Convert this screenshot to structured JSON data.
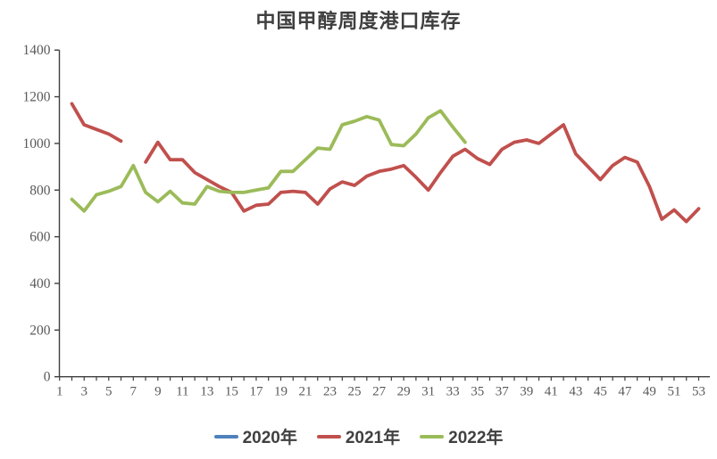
{
  "title": "中国甲醇周度港口库存",
  "chart_data": {
    "type": "line",
    "title": "中国甲醇周度港口库存",
    "x_axis": {
      "min": 1,
      "max": 53,
      "tick_labels": [
        1,
        3,
        5,
        7,
        9,
        11,
        13,
        15,
        17,
        19,
        21,
        23,
        25,
        27,
        29,
        31,
        33,
        35,
        37,
        39,
        41,
        43,
        45,
        47,
        49,
        51,
        53
      ],
      "minor_tick_step": 1
    },
    "y_axis": {
      "min": 0,
      "max": 1400,
      "tick_step": 200,
      "tick_labels": [
        0,
        200,
        400,
        600,
        800,
        1000,
        1200,
        1400
      ]
    },
    "grid": false,
    "legend_position": "bottom",
    "colors": {
      "axis": "#3f3f3f",
      "tick_label": "#595959",
      "title": "#3f3f3f",
      "legend_text": "#404040"
    },
    "series": [
      {
        "name": "2020年",
        "color": "#4F81BD",
        "weeks": [],
        "values": []
      },
      {
        "name": "2021年",
        "color": "#C0504D",
        "weeks": [
          2,
          3,
          4,
          5,
          6,
          7,
          8,
          9,
          10,
          11,
          12,
          13,
          14,
          15,
          16,
          17,
          18,
          19,
          20,
          21,
          22,
          23,
          24,
          25,
          26,
          27,
          28,
          29,
          30,
          31,
          32,
          33,
          34,
          35,
          36,
          37,
          38,
          39,
          40,
          41,
          42,
          43,
          44,
          45,
          46,
          47,
          48,
          49,
          50,
          51,
          52,
          53
        ],
        "values": [
          1170,
          1080,
          1060,
          1040,
          1010,
          null,
          920,
          1005,
          930,
          930,
          875,
          845,
          815,
          790,
          710,
          735,
          740,
          790,
          795,
          790,
          740,
          805,
          835,
          820,
          860,
          880,
          890,
          905,
          855,
          800,
          875,
          945,
          975,
          935,
          910,
          975,
          1005,
          1015,
          1000,
          1040,
          1080,
          955,
          900,
          845,
          905,
          940,
          920,
          815,
          675,
          715,
          665,
          720
        ]
      },
      {
        "name": "2022年",
        "color": "#9BBB59",
        "weeks": [
          2,
          3,
          4,
          5,
          6,
          7,
          8,
          9,
          10,
          11,
          12,
          13,
          14,
          15,
          16,
          17,
          18,
          19,
          20,
          21,
          22,
          23,
          24,
          25,
          26,
          27,
          28,
          29,
          30,
          31,
          32,
          33,
          34
        ],
        "values": [
          760,
          710,
          780,
          795,
          815,
          905,
          790,
          750,
          795,
          745,
          740,
          815,
          795,
          790,
          790,
          800,
          810,
          880,
          880,
          930,
          980,
          975,
          1080,
          1095,
          1115,
          1100,
          995,
          990,
          1040,
          1110,
          1140,
          1070,
          1005
        ]
      }
    ]
  }
}
